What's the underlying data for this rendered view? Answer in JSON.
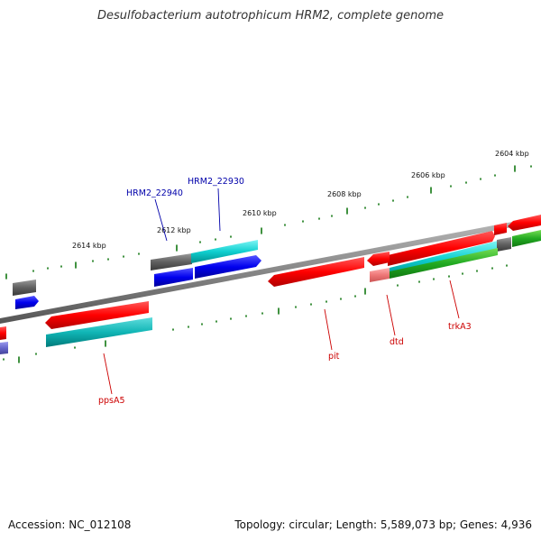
{
  "header": {
    "title": "Desulfobacterium autotrophicum HRM2, complete genome"
  },
  "footer": {
    "accession": "Accession: NC_012108",
    "summary": "Topology: circular; Length: 5,589,073 bp; Genes: 4,936"
  },
  "kbp_labels": [
    "2614 kbp",
    "2612 kbp",
    "2610 kbp",
    "2608 kbp",
    "2606 kbp",
    "2604 kbp"
  ],
  "gene_labels": {
    "hrm2_22940": "HRM2_22940",
    "hrm2_22930": "HRM2_22930",
    "ppsA5": "ppsA5",
    "pit": "pit",
    "dtd": "dtd",
    "trkA3": "trkA3"
  },
  "colors": {
    "red": "#ff0000",
    "cyan": "#00d8d8",
    "blue": "#0000ee",
    "gray": "#606060",
    "green": "#22aa22",
    "tick": "#117711",
    "label_blue": "#0000aa",
    "label_red": "#cc0000"
  }
}
